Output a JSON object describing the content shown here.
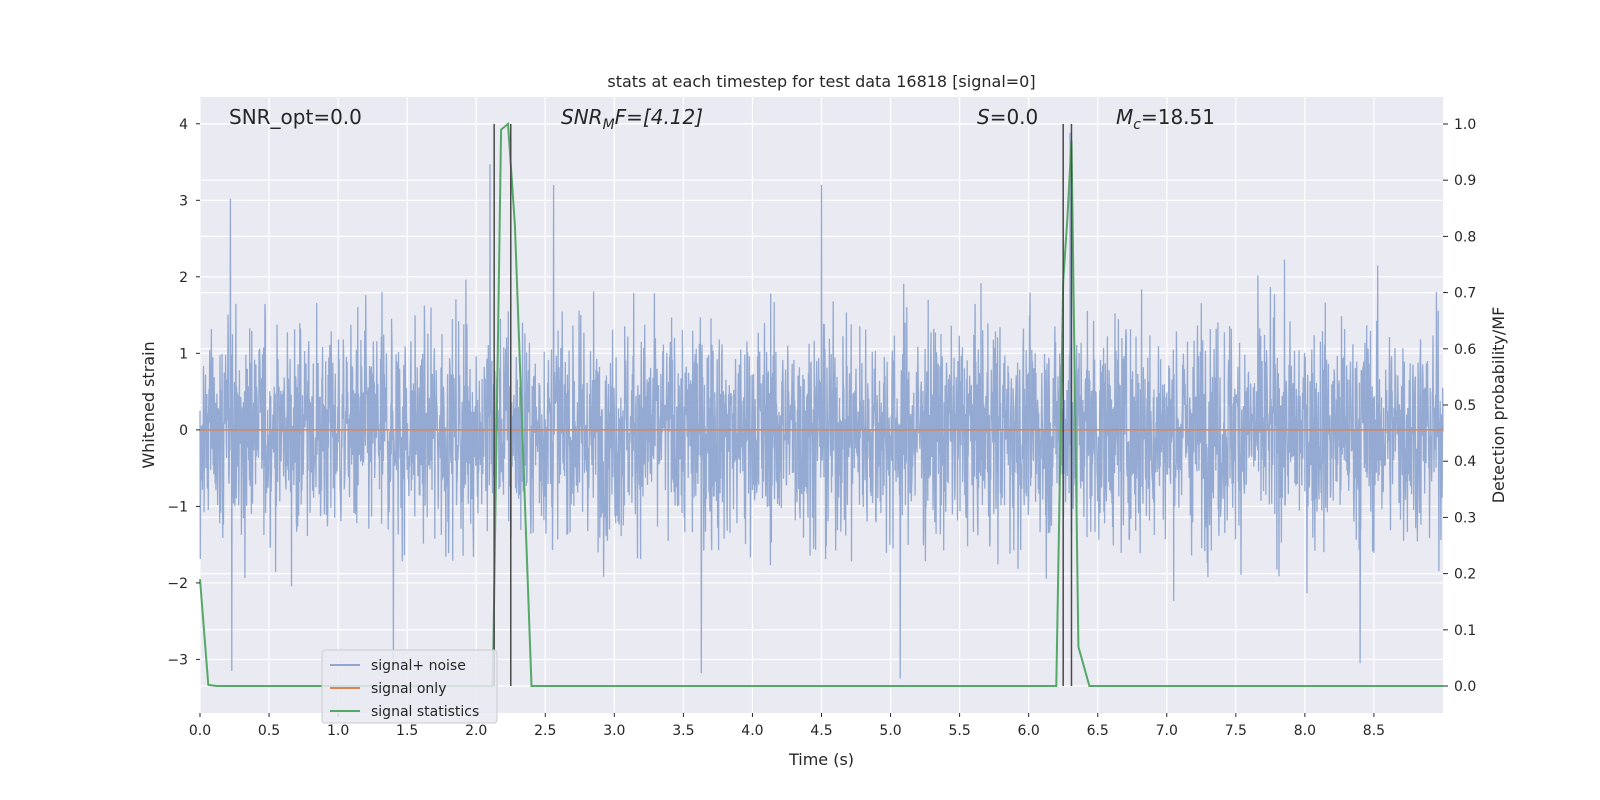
{
  "chart_data": {
    "type": "line",
    "title": "stats at each timestep for test data 16818 [signal=0]",
    "xlabel": "Time (s)",
    "ylabel": "Whitened strain",
    "ylabel_right": "Detection probability/MF",
    "xlim": [
      0,
      9.0
    ],
    "ylim": [
      -3.7,
      4.35
    ],
    "ylim_right": [
      -0.048,
      1.048
    ],
    "xticks": [
      "0.0",
      "0.5",
      "1.0",
      "1.5",
      "2.0",
      "2.5",
      "3.0",
      "3.5",
      "4.0",
      "4.5",
      "5.0",
      "5.5",
      "6.0",
      "6.5",
      "7.0",
      "7.5",
      "8.0",
      "8.5"
    ],
    "yticks": [
      "−3",
      "−2",
      "−1",
      "0",
      "1",
      "2",
      "3",
      "4"
    ],
    "yticks_right": [
      "0.0",
      "0.1",
      "0.2",
      "0.3",
      "0.4",
      "0.5",
      "0.6",
      "0.7",
      "0.8",
      "0.9",
      "1.0"
    ],
    "grid": true,
    "legend_position": "lower-left",
    "annotations": {
      "snr_opt": "SNR_opt=0.0",
      "snr_mf_main": "SNR",
      "snr_mf_sub": "M",
      "snr_mf_tail": "F=[4.12]",
      "s_label": "S",
      "s_tail": "=0.0",
      "mc_main": "M",
      "mc_sub": "c",
      "mc_tail": "=18.51"
    },
    "series": [
      {
        "name": "signal+ noise",
        "color": "#8fa6d0",
        "noise_band": {
          "typical_range": [
            -1.1,
            1.1
          ],
          "envelope_max": 2.4,
          "envelope_min": -2.4,
          "extreme": [
            -3.2,
            3.5
          ]
        },
        "notable_spikes": [
          {
            "x": 0.22,
            "y": 3.02
          },
          {
            "x": 0.23,
            "y": -3.15
          },
          {
            "x": 1.4,
            "y": -3.15
          },
          {
            "x": 2.1,
            "y": 3.47
          },
          {
            "x": 2.56,
            "y": 3.2
          },
          {
            "x": 3.63,
            "y": -3.18
          },
          {
            "x": 4.5,
            "y": 3.2
          },
          {
            "x": 5.07,
            "y": -3.25
          },
          {
            "x": 6.3,
            "y": 3.88
          },
          {
            "x": 8.4,
            "y": -3.05
          }
        ]
      },
      {
        "name": "signal only",
        "color": "#dd8452",
        "x": [
          0,
          9.0
        ],
        "y": [
          0,
          0
        ]
      },
      {
        "name": "signal statistics",
        "color": "#55a868",
        "axis": "right",
        "x": [
          0.0,
          0.06,
          0.12,
          2.12,
          2.18,
          2.23,
          2.28,
          2.4,
          6.2,
          6.25,
          6.28,
          6.31,
          6.36,
          6.44,
          9.0
        ],
        "y": [
          0.19,
          0.002,
          0.0,
          0.0,
          0.99,
          1.0,
          0.82,
          0.0,
          0.0,
          0.72,
          0.83,
          0.97,
          0.07,
          0.0,
          0.0
        ]
      }
    ],
    "vertical_markers": [
      {
        "x": 2.13,
        "color": "#4a4a4a"
      },
      {
        "x": 2.25,
        "color": "#4a4a4a"
      },
      {
        "x": 6.25,
        "color": "#4a4a4a"
      },
      {
        "x": 6.31,
        "color": "#4a4a4a"
      }
    ]
  }
}
